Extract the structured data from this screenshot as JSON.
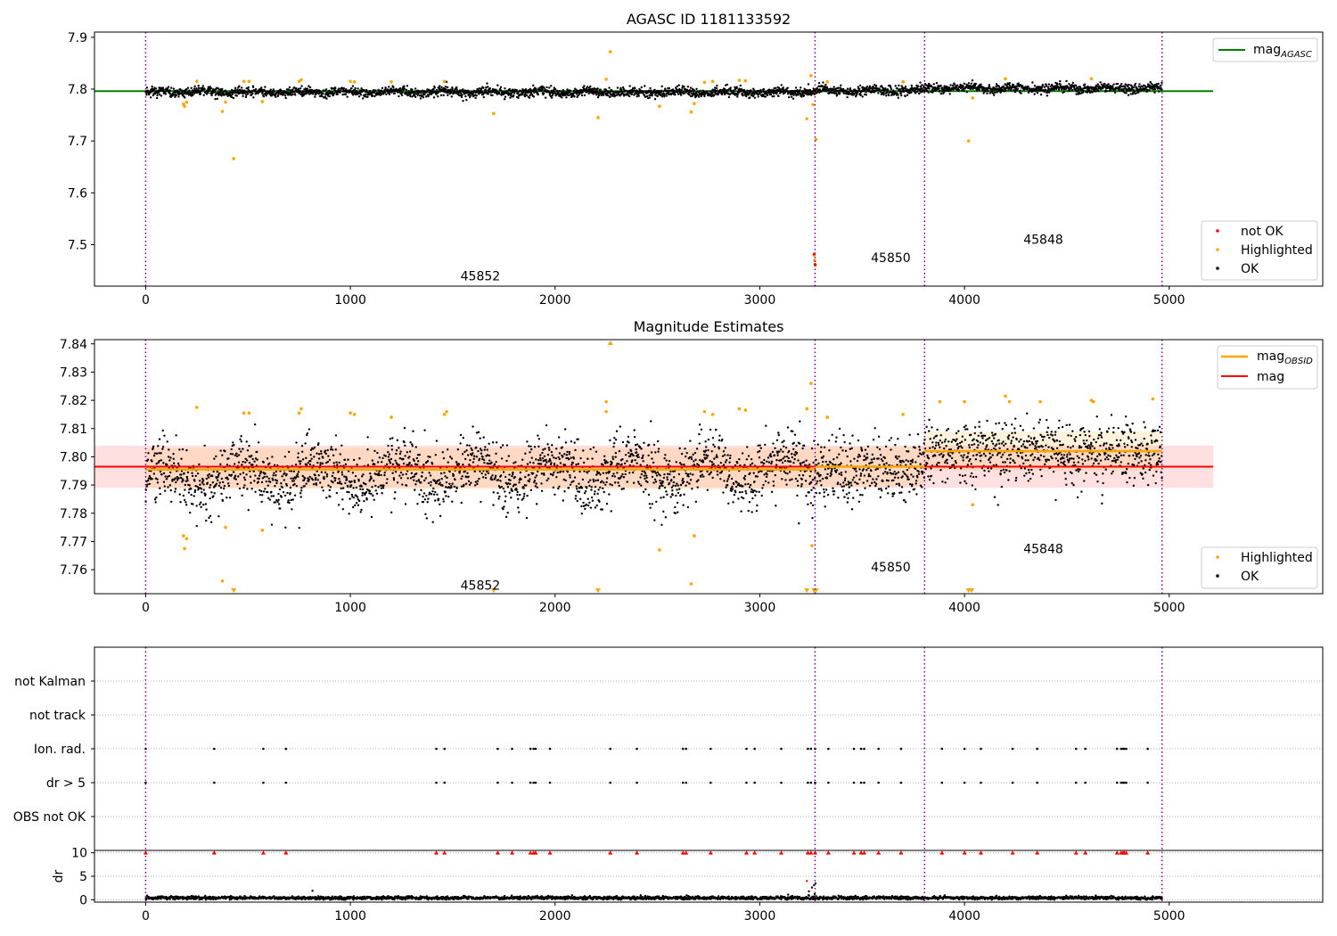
{
  "chart_data": [
    {
      "type": "scatter",
      "title": "AGASC ID 1181133592",
      "xlim": [
        -250,
        5750
      ],
      "ylim": [
        7.42,
        7.91
      ],
      "xticks": [
        0,
        1000,
        2000,
        3000,
        4000,
        5000
      ],
      "yticks": [
        7.5,
        7.6,
        7.7,
        7.8,
        7.9
      ],
      "ytick_labels": [
        "7.5",
        "7.6",
        "7.7",
        "7.8",
        "7.9"
      ],
      "legend_top": {
        "position": "top-right",
        "entries": [
          {
            "label": "mag",
            "subscript": "AGASC",
            "color": "#008000"
          }
        ]
      },
      "legend_bottom": {
        "position": "bottom-right",
        "entries": [
          {
            "label": "not OK",
            "color": "#ff0000"
          },
          {
            "label": "Highlighted",
            "color": "#ffa500"
          },
          {
            "label": "OK",
            "color": "#000000"
          }
        ]
      },
      "obsid_boundaries": [
        0,
        3270,
        3805,
        4965
      ],
      "obsid_annotations": [
        {
          "label": "45852",
          "x": 1635,
          "y": 7.44
        },
        {
          "label": "45850",
          "x": 3640,
          "y": 7.475
        },
        {
          "label": "45848",
          "x": 4385,
          "y": 7.51
        }
      ],
      "mag_agasc": {
        "value": 7.796,
        "x_range": [
          -250,
          5215
        ]
      },
      "ok_series": {
        "name": "OK",
        "color": "#000000",
        "segments": [
          {
            "x0": 0,
            "x1": 3270,
            "mean": 7.794,
            "sd": 0.006
          },
          {
            "x0": 3270,
            "x1": 3805,
            "mean": 7.797,
            "sd": 0.006
          },
          {
            "x0": 3805,
            "x1": 4965,
            "mean": 7.802,
            "sd": 0.006
          }
        ]
      },
      "highlighted_points": {
        "name": "Highlighted",
        "color": "#ffa500",
        "points": [
          [
            185,
            7.771
          ],
          [
            190,
            7.767
          ],
          [
            200,
            7.775
          ],
          [
            250,
            7.815
          ],
          [
            375,
            7.757
          ],
          [
            390,
            7.775
          ],
          [
            430,
            7.666
          ],
          [
            480,
            7.815
          ],
          [
            505,
            7.815
          ],
          [
            570,
            7.776
          ],
          [
            750,
            7.815
          ],
          [
            760,
            7.818
          ],
          [
            1000,
            7.815
          ],
          [
            1020,
            7.814
          ],
          [
            1200,
            7.814
          ],
          [
            1460,
            7.815
          ],
          [
            1700,
            7.753
          ],
          [
            2210,
            7.745
          ],
          [
            2250,
            7.819
          ],
          [
            2270,
            7.872
          ],
          [
            2510,
            7.767
          ],
          [
            2665,
            7.756
          ],
          [
            2680,
            7.772
          ],
          [
            2730,
            7.813
          ],
          [
            2770,
            7.815
          ],
          [
            2900,
            7.817
          ],
          [
            2930,
            7.816
          ],
          [
            3230,
            7.743
          ],
          [
            3250,
            7.826
          ],
          [
            3260,
            7.77
          ],
          [
            3265,
            7.48
          ],
          [
            3268,
            7.47
          ],
          [
            3272,
            7.46
          ],
          [
            3275,
            7.703
          ],
          [
            3330,
            7.814
          ],
          [
            3700,
            7.814
          ],
          [
            4020,
            7.7
          ],
          [
            4040,
            7.783
          ],
          [
            4200,
            7.82
          ],
          [
            4620,
            7.82
          ]
        ]
      },
      "not_ok_points": {
        "name": "not OK",
        "color": "#ff0000",
        "points": [
          [
            3266,
            7.482
          ],
          [
            3270,
            7.462
          ]
        ]
      }
    },
    {
      "type": "scatter",
      "title": "Magnitude Estimates",
      "xlim": [
        -250,
        5750
      ],
      "ylim": [
        7.7515,
        7.8415
      ],
      "xticks": [
        0,
        1000,
        2000,
        3000,
        4000,
        5000
      ],
      "yticks": [
        7.76,
        7.77,
        7.78,
        7.79,
        7.8,
        7.81,
        7.82,
        7.83,
        7.84
      ],
      "ytick_labels": [
        "7.76",
        "7.77",
        "7.78",
        "7.79",
        "7.80",
        "7.81",
        "7.82",
        "7.83",
        "7.84"
      ],
      "legend_top": {
        "position": "top-right",
        "entries": [
          {
            "label": "mag",
            "subscript": "OBSID",
            "color": "#ffa500"
          },
          {
            "label": "mag",
            "color": "#ff0000"
          }
        ]
      },
      "legend_bottom": {
        "position": "bottom-right",
        "entries": [
          {
            "label": "Highlighted",
            "color": "#ffa500"
          },
          {
            "label": "OK",
            "color": "#000000"
          }
        ]
      },
      "obsid_boundaries": [
        0,
        3270,
        3805,
        4965
      ],
      "obsid_annotations": [
        {
          "label": "45852",
          "x": 1635,
          "y": 7.7545
        },
        {
          "label": "45850",
          "x": 3640,
          "y": 7.761
        },
        {
          "label": "45848",
          "x": 4385,
          "y": 7.7675
        }
      ],
      "mag": {
        "value": 7.7965,
        "band": [
          7.789,
          7.804
        ],
        "x_range": [
          -250,
          5215
        ],
        "color": "#ff0000"
      },
      "mag_obsid": [
        {
          "x0": 0,
          "x1": 3270,
          "value": 7.7955,
          "band": [
            7.7885,
            7.803
          ]
        },
        {
          "x0": 3270,
          "x1": 3805,
          "value": 7.7965,
          "band": [
            7.7895,
            7.8035
          ]
        },
        {
          "x0": 3805,
          "x1": 4965,
          "value": 7.802,
          "band": [
            7.795,
            7.809
          ]
        }
      ],
      "highlighted_points": {
        "name": "Highlighted",
        "color": "#ffa500",
        "points": [
          [
            185,
            7.772
          ],
          [
            190,
            7.7675
          ],
          [
            200,
            7.771
          ],
          [
            250,
            7.8175
          ],
          [
            375,
            7.756
          ],
          [
            390,
            7.775
          ],
          [
            480,
            7.8155
          ],
          [
            505,
            7.8155
          ],
          [
            570,
            7.774
          ],
          [
            750,
            7.8155
          ],
          [
            760,
            7.817
          ],
          [
            1000,
            7.8155
          ],
          [
            1020,
            7.815
          ],
          [
            1200,
            7.814
          ],
          [
            1460,
            7.815
          ],
          [
            1470,
            7.816
          ],
          [
            2250,
            7.8195
          ],
          [
            2250,
            7.816
          ],
          [
            2510,
            7.767
          ],
          [
            2665,
            7.755
          ],
          [
            2680,
            7.772
          ],
          [
            2730,
            7.816
          ],
          [
            2770,
            7.815
          ],
          [
            2900,
            7.817
          ],
          [
            2930,
            7.8165
          ],
          [
            3230,
            7.817
          ],
          [
            3250,
            7.826
          ],
          [
            3255,
            7.7685
          ],
          [
            3330,
            7.814
          ],
          [
            3700,
            7.815
          ],
          [
            3880,
            7.8195
          ],
          [
            4000,
            7.8195
          ],
          [
            4040,
            7.783
          ],
          [
            4200,
            7.8215
          ],
          [
            4220,
            7.8195
          ],
          [
            4370,
            7.8195
          ],
          [
            4620,
            7.82
          ],
          [
            4630,
            7.8195
          ],
          [
            4920,
            7.8205
          ]
        ]
      },
      "off_scale_markers": [
        [
          430,
          "low"
        ],
        [
          1700,
          "low"
        ],
        [
          2210,
          "low"
        ],
        [
          2270,
          "high"
        ],
        [
          3230,
          "low"
        ],
        [
          3265,
          "low"
        ],
        [
          3275,
          "low"
        ],
        [
          4020,
          "low"
        ],
        [
          4035,
          "low"
        ]
      ]
    },
    {
      "type": "scatter",
      "title": "",
      "xlim": [
        -250,
        5750
      ],
      "xticks": [
        0,
        1000,
        2000,
        3000,
        4000,
        5000
      ],
      "flag_rows": [
        "not Kalman",
        "not track",
        "Ion. rad.",
        "dr > 5",
        "OBS not OK"
      ],
      "flag_xs": [
        0,
        335,
        575,
        685,
        1420,
        1460,
        1720,
        1790,
        1880,
        1895,
        1905,
        1975,
        2270,
        2400,
        2625,
        2640,
        2760,
        2935,
        2975,
        3105,
        3235,
        3250,
        3270,
        3335,
        3460,
        3495,
        3510,
        3580,
        3690,
        3890,
        4000,
        4080,
        4235,
        4355,
        4545,
        4590,
        4745,
        4765,
        4775,
        4780,
        4790,
        4895
      ],
      "obsid_boundaries": [
        0,
        3270,
        3805,
        4965
      ],
      "dr": {
        "ylabel": "dr",
        "ylim": [
          -0.5,
          10.5
        ],
        "yticks": [
          0,
          5,
          10
        ],
        "ytick_labels": [
          "0",
          "5",
          "10"
        ],
        "typical_mean": 0.4,
        "spike_points": [
          [
            815,
            1.9
          ],
          [
            3230,
            4.0
          ],
          [
            3240,
            1.8
          ],
          [
            3255,
            2.6
          ],
          [
            3268,
            1.2
          ],
          [
            3265,
            3.1
          ],
          [
            3272,
            3.5
          ]
        ],
        "clipped_value": 10,
        "clipped_color": "#ff0000"
      }
    }
  ]
}
